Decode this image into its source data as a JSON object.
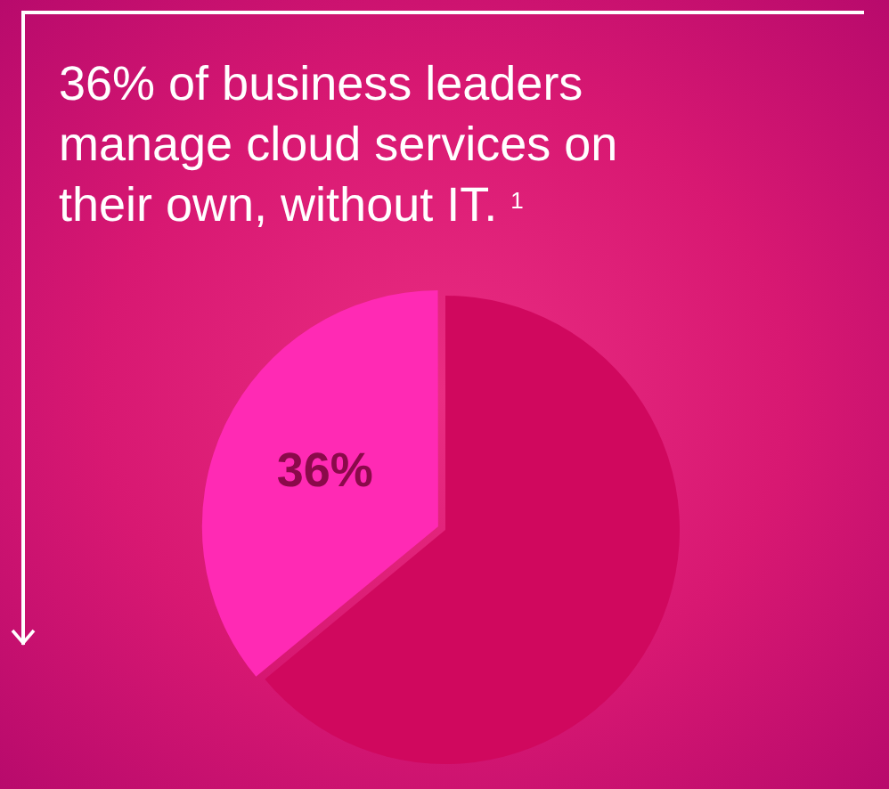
{
  "chart_data": {
    "type": "pie",
    "title": "36% of business leaders manage cloud services on their own, without IT. $^{1}$",
    "categories": [
      null,
      null
    ],
    "values": [
      64,
      36
    ],
    "colors": [
      "#d0085e",
      "#ff2ab4"
    ],
    "value_labels": [
      null,
      "36%"
    ],
    "legend": false
  }
}
